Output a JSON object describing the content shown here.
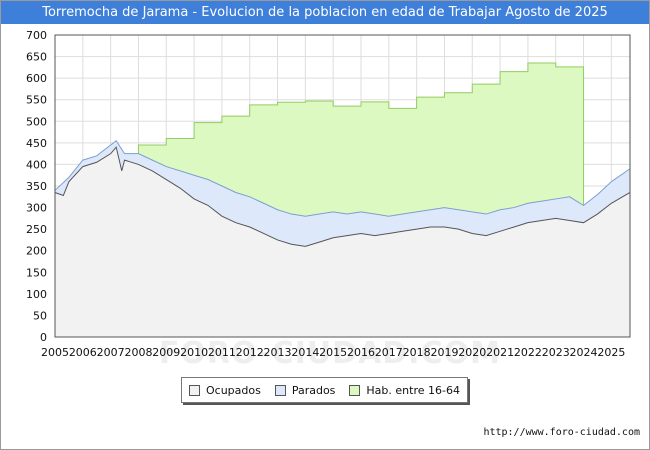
{
  "header": {
    "title": "Torremocha de Jarama - Evolucion de la poblacion en edad de Trabajar Agosto de 2025"
  },
  "watermark": "FORO-CIUDAD.COM",
  "footer": {
    "source": "http://www.foro-ciudad.com"
  },
  "colors": {
    "ocupados": "#f2f2f2",
    "parados": "#dde9fb",
    "hab": "#dcf9c2",
    "hab_line": "#93cc60",
    "parados_line": "#7c9fcf",
    "ocupados_line": "#555555",
    "title_bg": "#3e7fd9"
  },
  "chart_data": {
    "type": "area",
    "title": "Torremocha de Jarama - Evolucion de la poblacion en edad de Trabajar Agosto de 2025",
    "xlabel": "",
    "ylabel": "",
    "xlim": [
      2005,
      2025.67
    ],
    "ylim": [
      0,
      700
    ],
    "y_ticks": [
      0,
      50,
      100,
      150,
      200,
      250,
      300,
      350,
      400,
      450,
      500,
      550,
      600,
      650,
      700
    ],
    "x_ticks": [
      2005,
      2006,
      2007,
      2008,
      2009,
      2010,
      2011,
      2012,
      2013,
      2014,
      2015,
      2016,
      2017,
      2018,
      2019,
      2020,
      2021,
      2022,
      2023,
      2024,
      2025
    ],
    "grid": true,
    "legend": {
      "position": "bottom",
      "entries": [
        "Ocupados",
        "Parados",
        "Hab. entre 16-64"
      ]
    },
    "series": [
      {
        "name": "Hab. entre 16-64",
        "steps": [
          {
            "x0": 2008,
            "x1": 2009,
            "y": 445
          },
          {
            "x0": 2009,
            "x1": 2010,
            "y": 460
          },
          {
            "x0": 2010,
            "x1": 2011,
            "y": 497
          },
          {
            "x0": 2011,
            "x1": 2012,
            "y": 512
          },
          {
            "x0": 2012,
            "x1": 2013,
            "y": 538
          },
          {
            "x0": 2013,
            "x1": 2014,
            "y": 544
          },
          {
            "x0": 2014,
            "x1": 2015,
            "y": 547
          },
          {
            "x0": 2015,
            "x1": 2016,
            "y": 535
          },
          {
            "x0": 2016,
            "x1": 2017,
            "y": 545
          },
          {
            "x0": 2017,
            "x1": 2018,
            "y": 530
          },
          {
            "x0": 2018,
            "x1": 2019,
            "y": 556
          },
          {
            "x0": 2019,
            "x1": 2020,
            "y": 566
          },
          {
            "x0": 2020,
            "x1": 2021,
            "y": 586
          },
          {
            "x0": 2021,
            "x1": 2022,
            "y": 615
          },
          {
            "x0": 2022,
            "x1": 2023,
            "y": 635
          },
          {
            "x0": 2023,
            "x1": 2024,
            "y": 626
          }
        ]
      },
      {
        "name": "Parados",
        "x": [
          2005.0,
          2005.5,
          2006.0,
          2006.5,
          2007.0,
          2007.2,
          2007.5,
          2008.0,
          2008.5,
          2009.0,
          2009.5,
          2010.0,
          2010.5,
          2011.0,
          2011.5,
          2012.0,
          2012.5,
          2013.0,
          2013.5,
          2014.0,
          2014.5,
          2015.0,
          2015.5,
          2016.0,
          2016.5,
          2017.0,
          2017.5,
          2018.0,
          2018.5,
          2019.0,
          2019.5,
          2020.0,
          2020.5,
          2021.0,
          2021.5,
          2022.0,
          2022.5,
          2023.0,
          2023.5,
          2024.0,
          2024.5,
          2025.0,
          2025.67
        ],
        "values": [
          340,
          370,
          410,
          420,
          445,
          455,
          425,
          425,
          410,
          395,
          385,
          375,
          365,
          350,
          335,
          325,
          310,
          295,
          285,
          280,
          285,
          290,
          285,
          290,
          285,
          280,
          285,
          290,
          295,
          300,
          295,
          290,
          285,
          295,
          300,
          310,
          315,
          320,
          325,
          305,
          330,
          360,
          390
        ]
      },
      {
        "name": "Ocupados",
        "x": [
          2005.0,
          2005.3,
          2005.5,
          2006.0,
          2006.5,
          2007.0,
          2007.2,
          2007.4,
          2007.5,
          2008.0,
          2008.5,
          2009.0,
          2009.5,
          2010.0,
          2010.5,
          2011.0,
          2011.5,
          2012.0,
          2012.5,
          2013.0,
          2013.5,
          2014.0,
          2014.5,
          2015.0,
          2015.5,
          2016.0,
          2016.5,
          2017.0,
          2017.5,
          2018.0,
          2018.5,
          2019.0,
          2019.5,
          2020.0,
          2020.5,
          2021.0,
          2021.5,
          2022.0,
          2022.5,
          2023.0,
          2023.5,
          2024.0,
          2024.5,
          2025.0,
          2025.67
        ],
        "values": [
          335,
          328,
          360,
          395,
          405,
          425,
          440,
          385,
          410,
          400,
          385,
          365,
          345,
          320,
          305,
          280,
          265,
          255,
          240,
          225,
          215,
          210,
          220,
          230,
          235,
          240,
          235,
          240,
          245,
          250,
          255,
          255,
          250,
          240,
          235,
          245,
          255,
          265,
          270,
          275,
          270,
          265,
          285,
          310,
          335
        ]
      }
    ]
  }
}
